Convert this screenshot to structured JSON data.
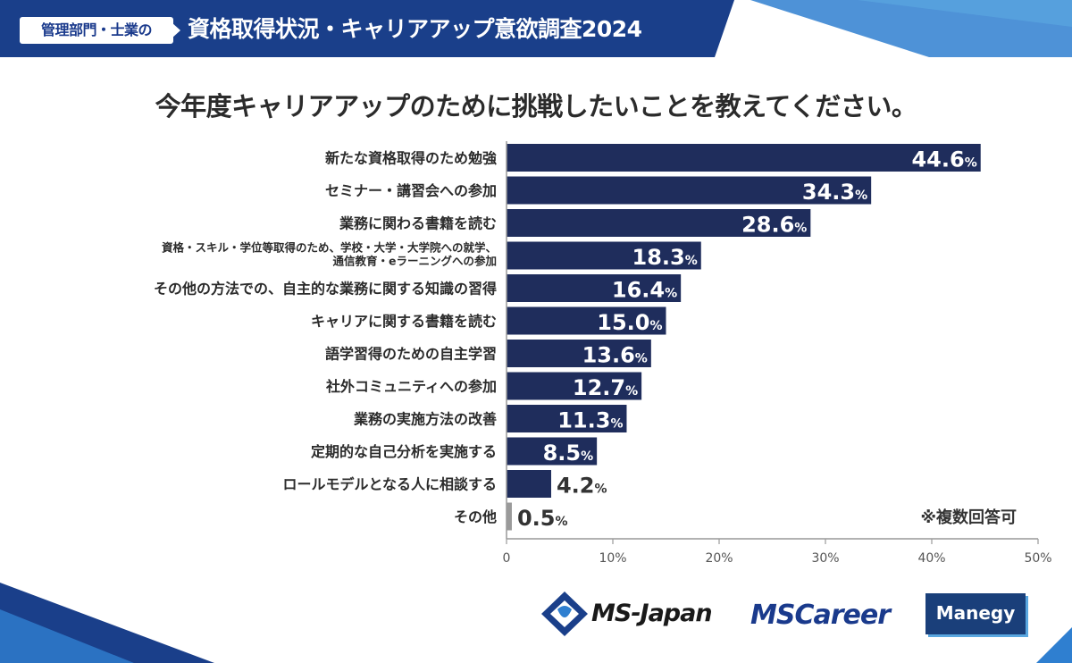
{
  "header": {
    "badge": "管理部門・士業の",
    "title": "資格取得状況・キャリアアップ意欲調査2024"
  },
  "question": "今年度キャリアアップのために挑戦したいことを教えてください。",
  "note": "※複数回答可",
  "colors": {
    "bar": "#1f2d5c",
    "bar_other": "#9a9a9a",
    "header": "#1a3f8a",
    "header_accent": "#2f7fd0",
    "axis": "#999999"
  },
  "chart_data": {
    "type": "bar",
    "orientation": "horizontal",
    "title": "今年度キャリアアップのために挑戦したいことを教えてください。",
    "categories": [
      [
        "新たな資格取得のため勉強"
      ],
      [
        "セミナー・講習会への参加"
      ],
      [
        "業務に関わる書籍を読む"
      ],
      [
        "資格・スキル・学位等取得のため、学校・大学・大学院への就学、",
        "通信教育・eラーニングへの参加"
      ],
      [
        "その他の方法での、自主的な業務に関する知識の習得"
      ],
      [
        "キャリアに関する書籍を読む"
      ],
      [
        "語学習得のための自主学習"
      ],
      [
        "社外コミュニティへの参加"
      ],
      [
        "業務の実施方法の改善"
      ],
      [
        "定期的な自己分析を実施する"
      ],
      [
        "ロールモデルとなる人に相談する"
      ],
      [
        "その他"
      ]
    ],
    "values": [
      44.6,
      34.3,
      28.6,
      18.3,
      16.4,
      15.0,
      13.6,
      12.7,
      11.3,
      8.5,
      4.2,
      0.5
    ],
    "value_labels": [
      "44.6",
      "34.3",
      "28.6",
      "18.3",
      "16.4",
      "15.0",
      "13.6",
      "12.7",
      "11.3",
      "8.5",
      "4.2",
      "0.5"
    ],
    "unit": "%",
    "xlim": [
      0,
      50
    ],
    "xticks": [
      "0",
      "10%",
      "20%",
      "30%",
      "40%",
      "50%"
    ],
    "xtick_values": [
      0,
      10,
      20,
      30,
      40,
      50
    ],
    "grid": false,
    "legend": "none"
  },
  "logos": {
    "ms_japan": "MS-Japan",
    "ms_career": "MSCareer",
    "manegy": "Manegy"
  }
}
